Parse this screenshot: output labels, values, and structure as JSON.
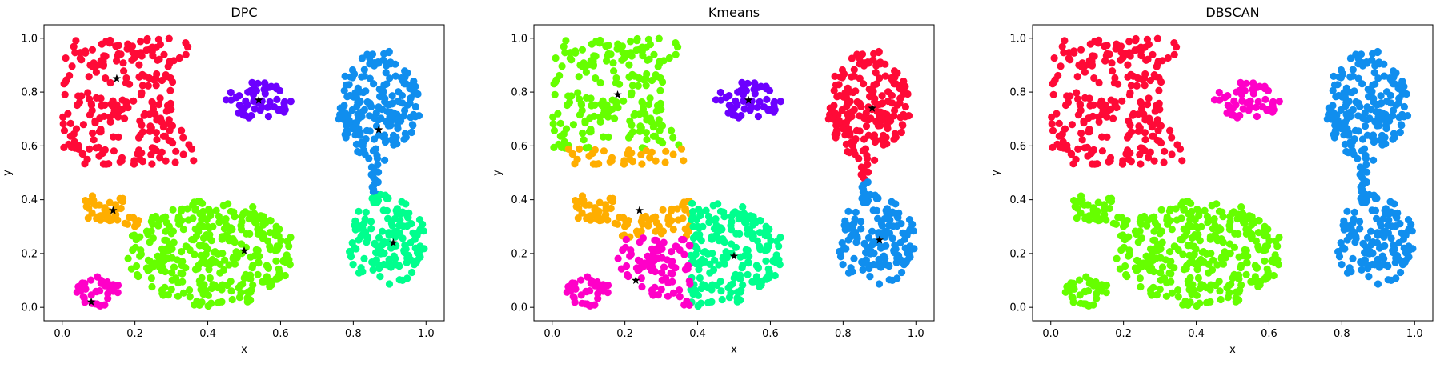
{
  "figure": {
    "background": "#ffffff"
  },
  "palette": {
    "red": "#ff0a37",
    "violet": "#6c00ff",
    "blue": "#108eee",
    "orange": "#ffae00",
    "green": "#66ff00",
    "teal": "#00ff8e",
    "magenta": "#ff00c8",
    "center_marker": "#000000"
  },
  "chart_data": [
    {
      "type": "scatter",
      "title": "DPC",
      "xlabel": "x",
      "ylabel": "y",
      "xlim": [
        -0.05,
        1.05
      ],
      "ylim": [
        -0.05,
        1.05
      ],
      "xticks": [
        "0.0",
        "0.2",
        "0.4",
        "0.6",
        "0.8",
        "1.0"
      ],
      "yticks": [
        "0.0",
        "0.2",
        "0.4",
        "0.6",
        "0.8",
        "1.0"
      ],
      "grid": false,
      "legend": "none",
      "clusters": [
        {
          "color": "red",
          "center": [
            0.15,
            0.85
          ]
        },
        {
          "color": "violet",
          "center": [
            0.54,
            0.77
          ]
        },
        {
          "color": "blue",
          "center": [
            0.87,
            0.66
          ]
        },
        {
          "color": "orange",
          "center": [
            0.14,
            0.36
          ]
        },
        {
          "color": "green",
          "center": [
            0.5,
            0.21
          ]
        },
        {
          "color": "teal",
          "center": [
            0.91,
            0.24
          ]
        },
        {
          "color": "magenta",
          "center": [
            0.08,
            0.02
          ]
        }
      ]
    },
    {
      "type": "scatter",
      "title": "Kmeans",
      "xlabel": "x",
      "ylabel": "y",
      "xlim": [
        -0.05,
        1.05
      ],
      "ylim": [
        -0.05,
        1.05
      ],
      "xticks": [
        "0.0",
        "0.2",
        "0.4",
        "0.6",
        "0.8",
        "1.0"
      ],
      "yticks": [
        "0.0",
        "0.2",
        "0.4",
        "0.6",
        "0.8",
        "1.0"
      ],
      "grid": false,
      "legend": "none",
      "clusters": [
        {
          "color": "green",
          "center": [
            0.18,
            0.79
          ]
        },
        {
          "color": "violet",
          "center": [
            0.54,
            0.77
          ]
        },
        {
          "color": "red",
          "center": [
            0.88,
            0.74
          ]
        },
        {
          "color": "orange",
          "center": [
            0.24,
            0.36
          ]
        },
        {
          "color": "teal",
          "center": [
            0.5,
            0.19
          ]
        },
        {
          "color": "blue",
          "center": [
            0.9,
            0.25
          ]
        },
        {
          "color": "magenta",
          "center": [
            0.23,
            0.1
          ]
        }
      ]
    },
    {
      "type": "scatter",
      "title": "DBSCAN",
      "xlabel": "x",
      "ylabel": "y",
      "xlim": [
        -0.05,
        1.05
      ],
      "ylim": [
        -0.05,
        1.05
      ],
      "xticks": [
        "0.0",
        "0.2",
        "0.4",
        "0.6",
        "0.8",
        "1.0"
      ],
      "yticks": [
        "0.0",
        "0.2",
        "0.4",
        "0.6",
        "0.8",
        "1.0"
      ],
      "grid": false,
      "legend": "none",
      "clusters": [
        {
          "color": "red"
        },
        {
          "color": "magenta"
        },
        {
          "color": "blue"
        },
        {
          "color": "green"
        }
      ]
    }
  ]
}
